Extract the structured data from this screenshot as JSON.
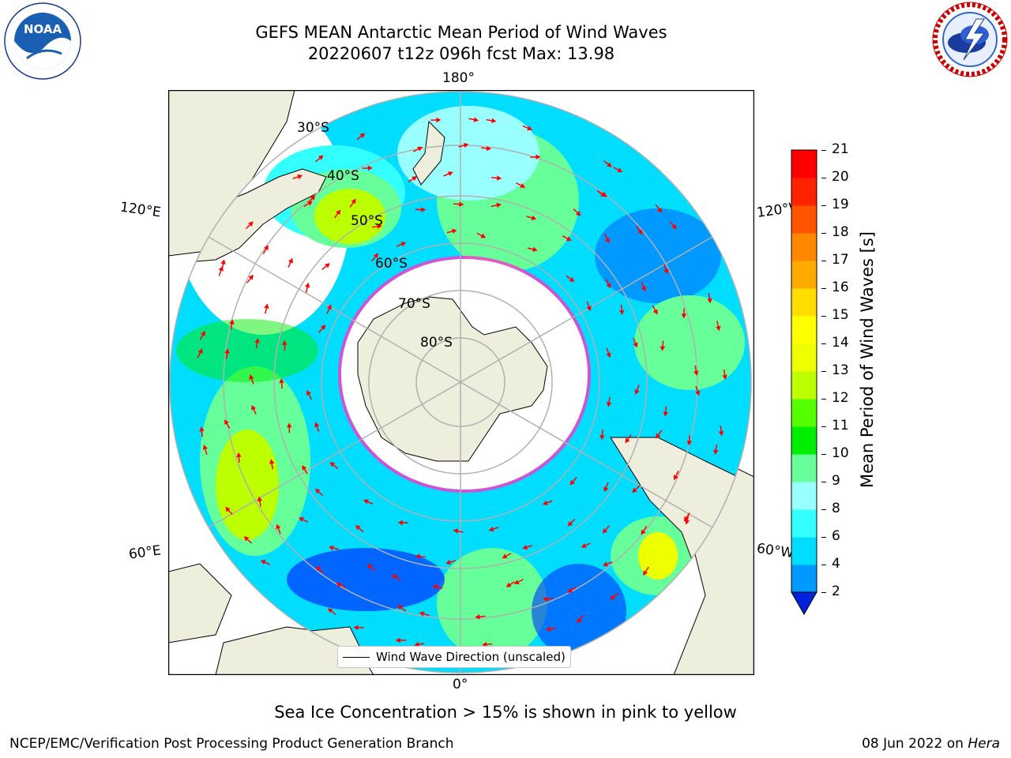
{
  "title_line1": "GEFS MEAN Antarctic Mean Period of Wind Waves",
  "title_line2": "20220607 t12z 096h fcst   Max: 13.98",
  "logos": {
    "noaa_ring_text": "NATIONAL OCEANIC AND ATMOSPHERIC ADMINISTRATION · U.S. DEPARTMENT OF COMMERCE",
    "noaa_center": "NOAA",
    "nws_ring_text": "NATIONAL WEATHER SERVICE"
  },
  "map": {
    "lon_labels": {
      "top": "180°",
      "bottom": "0°",
      "upper_left": "120°E",
      "upper_right": "120°W",
      "lower_left": "60°E",
      "lower_right": "60°W"
    },
    "lat_labels": [
      "30°S",
      "40°S",
      "50°S",
      "60°S",
      "70°S",
      "80°S"
    ],
    "legend_label": "Wind Wave Direction (unscaled)",
    "colors": {
      "land": "#eeeedc",
      "ocean_void": "#ffffff",
      "arrow": "#ff0000",
      "grid": "#b0b0b0",
      "ice_edge": "#ff33cc"
    }
  },
  "colorbar": {
    "title": "Mean Period of Wind Waves [s]",
    "ticks": [
      "2",
      "4",
      "6",
      "8",
      "9",
      "10",
      "11",
      "12",
      "13",
      "14",
      "15",
      "16",
      "17",
      "18",
      "19",
      "20",
      "21"
    ],
    "colors": [
      "#0033ff",
      "#0099ff",
      "#00ddff",
      "#33ffff",
      "#99ffff",
      "#66ff99",
      "#00ee00",
      "#55ff00",
      "#bbff00",
      "#eeff00",
      "#ffff00",
      "#ffdd00",
      "#ffaa00",
      "#ff8800",
      "#ff5500",
      "#ff2200",
      "#ff0000"
    ],
    "under_color": "#0022dd"
  },
  "caption": "Sea Ice Concentration > 15% is shown in pink to yellow",
  "footer_left": "NCEP/EMC/Verification Post Processing Product Generation Branch",
  "footer_right_prefix": "08 Jun 2022 on ",
  "footer_right_italic": "Hera"
}
